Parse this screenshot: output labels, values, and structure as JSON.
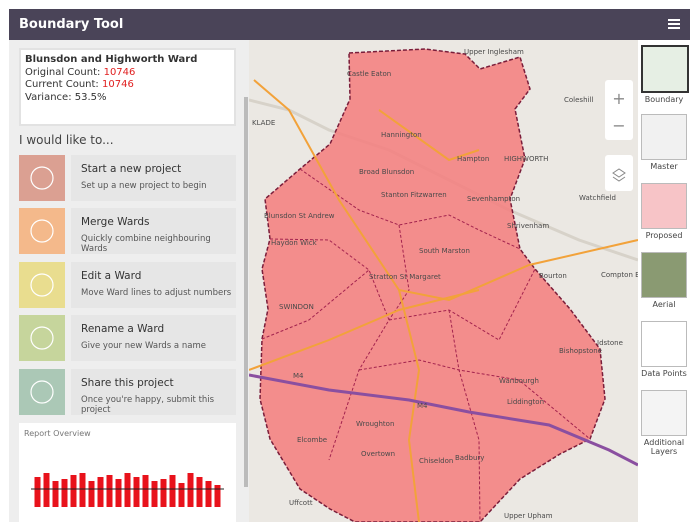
{
  "header": {
    "title": "Boundary Tool"
  },
  "ward": {
    "name": "Blunsdon and Highworth Ward",
    "original_label": "Original Count:",
    "original_count": 10746,
    "current_label": "Current Count:",
    "current_count": 10746,
    "variance": "Variance: 53.5%"
  },
  "actions_heading": "I would like to...",
  "actions": [
    {
      "title": "Start a new project",
      "subtitle": "Set up a new project to begin"
    },
    {
      "title": "Merge Wards",
      "subtitle": "Quickly combine neighbouring Wards"
    },
    {
      "title": "Edit a Ward",
      "subtitle": "Move Ward lines to adjust numbers"
    },
    {
      "title": "Rename a Ward",
      "subtitle": "Give your new Wards a name"
    },
    {
      "title": "Share this project",
      "subtitle": "Once you're happy, submit this project"
    }
  ],
  "report": {
    "title": "Report Overview",
    "values": [
      75,
      85,
      65,
      70,
      80,
      85,
      65,
      75,
      80,
      70,
      85,
      75,
      80,
      65,
      70,
      80,
      60,
      85,
      75,
      65,
      55
    ],
    "reference": 45,
    "max": 100
  },
  "map": {
    "labels": [
      "Castle Eaton",
      "Upper Inglesham",
      "Coleshill",
      "Hannington",
      "Hampton",
      "HIGHWORTH",
      "Broad Blunsdon",
      "Stanton Fitzwarren",
      "Sevenhampton",
      "Watchfield",
      "Blunsdon St Andrew",
      "Shrivenham",
      "Haydon Wick",
      "South Marston",
      "Stratton St Margaret",
      "Bourton",
      "Compton E",
      "SWINDON",
      "Idstone",
      "Bishopstone",
      "Wanbourgh",
      "Liddington",
      "Wroughton",
      "Elcombe",
      "Overtown",
      "Badbury",
      "Chiseldon",
      "Uffcott",
      "Upper Upham",
      "KLADE",
      "M4",
      "M4"
    ]
  },
  "layers": [
    "Boundary",
    "Master",
    "Proposed",
    "Aerial",
    "Data Points",
    "Additional Layers"
  ]
}
